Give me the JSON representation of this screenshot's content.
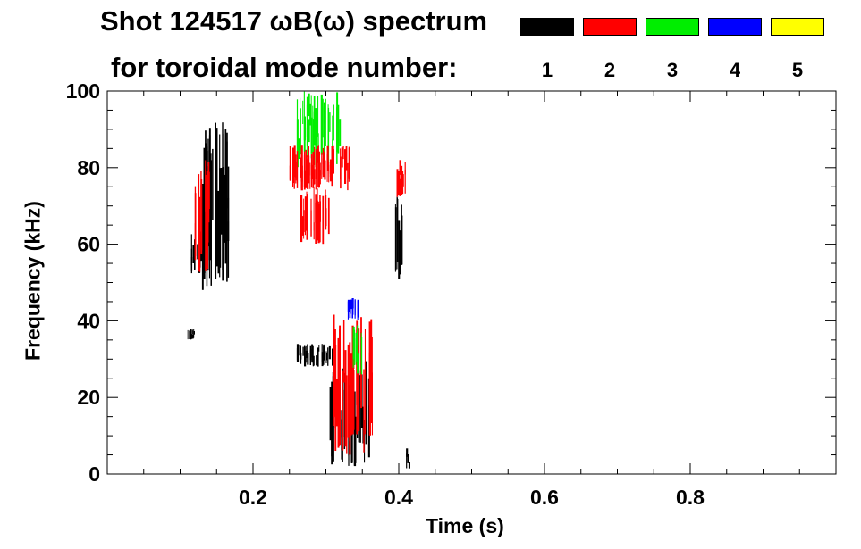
{
  "chart_data": {
    "type": "heatmap",
    "title_line1": "Shot 124517 ωB(ω) spectrum",
    "title_line2": "for toroidal mode number:",
    "xlabel": "Time (s)",
    "ylabel": "Frequency (kHz)",
    "xlim": [
      0.0,
      1.0
    ],
    "ylim": [
      0,
      100
    ],
    "x_ticks": [
      "0.2",
      "0.4",
      "0.6",
      "0.8"
    ],
    "y_ticks": [
      "0",
      "20",
      "40",
      "60",
      "80",
      "100"
    ],
    "legend": [
      {
        "label": "1",
        "color": "#000000"
      },
      {
        "label": "2",
        "color": "#ff0000"
      },
      {
        "label": "3",
        "color": "#00ee00"
      },
      {
        "label": "4",
        "color": "#0000ff"
      },
      {
        "label": "5",
        "color": "#ffff00"
      }
    ],
    "regions": [
      {
        "mode": 1,
        "t": [
          0.13,
          0.175
        ],
        "f": [
          48,
          92
        ]
      },
      {
        "mode": 1,
        "t": [
          0.115,
          0.135
        ],
        "f": [
          52,
          64
        ]
      },
      {
        "mode": 1,
        "t": [
          0.11,
          0.12
        ],
        "f": [
          35,
          38
        ]
      },
      {
        "mode": 2,
        "t": [
          0.12,
          0.14
        ],
        "f": [
          52,
          82
        ]
      },
      {
        "mode": 3,
        "t": [
          0.26,
          0.32
        ],
        "f": [
          80,
          100
        ]
      },
      {
        "mode": 2,
        "t": [
          0.25,
          0.335
        ],
        "f": [
          74,
          86
        ]
      },
      {
        "mode": 2,
        "t": [
          0.265,
          0.305
        ],
        "f": [
          60,
          75
        ]
      },
      {
        "mode": 1,
        "t": [
          0.395,
          0.405
        ],
        "f": [
          50,
          76
        ]
      },
      {
        "mode": 2,
        "t": [
          0.395,
          0.41
        ],
        "f": [
          72,
          82
        ]
      },
      {
        "mode": 1,
        "t": [
          0.26,
          0.31
        ],
        "f": [
          28,
          34
        ]
      },
      {
        "mode": 1,
        "t": [
          0.305,
          0.36
        ],
        "f": [
          2,
          30
        ]
      },
      {
        "mode": 2,
        "t": [
          0.31,
          0.365
        ],
        "f": [
          5,
          42
        ]
      },
      {
        "mode": 3,
        "t": [
          0.335,
          0.35
        ],
        "f": [
          26,
          39
        ]
      },
      {
        "mode": 4,
        "t": [
          0.33,
          0.345
        ],
        "f": [
          40,
          46
        ]
      },
      {
        "mode": 1,
        "t": [
          0.41,
          0.415
        ],
        "f": [
          1,
          8
        ]
      }
    ]
  }
}
